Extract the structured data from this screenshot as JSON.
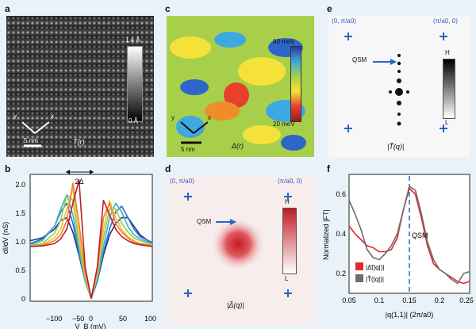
{
  "panels": {
    "a": {
      "label": "a",
      "colorbar_top": "1.4 Å",
      "colorbar_bottom": "0 Å",
      "axis_y": "y",
      "axis_x": "x",
      "scalebar": "5 nm",
      "map_label": "T(r)"
    },
    "b": {
      "label": "b",
      "annotation": "2Δ",
      "ylabel": "dI/dV (nS)",
      "xlabel": "V_B (mV)",
      "xticks": [
        "−100",
        "−50",
        "0",
        "50",
        "100"
      ],
      "yticks": [
        "0",
        "0.5",
        "1.0",
        "1.5",
        "2.0"
      ]
    },
    "c": {
      "label": "c",
      "colorbar_top": "60 meV",
      "colorbar_bottom": "20 meV",
      "axis_y": "y",
      "axis_x": "x",
      "scalebar": "5 nm",
      "map_label": "Δ(r)"
    },
    "d": {
      "label": "d",
      "corner_left": "(0, π/a0)",
      "corner_right": "(π/a0, 0)",
      "qsm": "QSM",
      "colorbar_top": "H",
      "colorbar_bottom": "L",
      "map_label": "|Δ̃(q)|"
    },
    "e": {
      "label": "e",
      "corner_left": "(0, π/a0)",
      "corner_right": "(π/a0, 0)",
      "qsm": "QSM",
      "colorbar_top": "H",
      "colorbar_bottom": "L",
      "map_label": "|T̃(q)|"
    },
    "f": {
      "label": "f",
      "ylabel": "Normalized |FT|",
      "xlabel": "|q(1,1)| (2π/a0)",
      "xticks": [
        "0.05",
        "0.1",
        "0.15",
        "0.2",
        "0.25"
      ],
      "yticks": [
        "0.2",
        "0.4",
        "0.6"
      ],
      "qsm": "QSM",
      "legend": [
        "|Δ̃(|q|)|",
        "|T̃(|q|)|"
      ]
    }
  },
  "colors": {
    "background": "#e9f2f9",
    "marker_blue": "#2a63c4",
    "series_red": "#e0282e",
    "series_gray": "#6d6d6d"
  },
  "chart_data": [
    {
      "type": "line",
      "panel": "b",
      "xlabel": "V_B (mV)",
      "ylabel": "dI/dV (nS)",
      "xlim": [
        -100,
        100
      ],
      "ylim": [
        0,
        2.2
      ],
      "series": [
        {
          "color": "#1f2f8e",
          "x": [
            -100,
            -80,
            -60,
            -50,
            -40,
            -30,
            -20,
            -10,
            0,
            10,
            20,
            30,
            40,
            50,
            60,
            70,
            80,
            100
          ],
          "y": [
            1.05,
            1.1,
            1.25,
            1.4,
            1.45,
            1.2,
            0.8,
            0.35,
            0.05,
            0.35,
            0.8,
            1.15,
            1.35,
            1.45,
            1.45,
            1.3,
            1.15,
            1.0
          ]
        },
        {
          "color": "#2f6fc7",
          "x": [
            -100,
            -80,
            -60,
            -50,
            -40,
            -30,
            -20,
            -10,
            0,
            10,
            20,
            30,
            40,
            50,
            60,
            70,
            80,
            100
          ],
          "y": [
            1.0,
            1.08,
            1.3,
            1.55,
            1.7,
            1.35,
            0.85,
            0.35,
            0.05,
            0.35,
            0.85,
            1.25,
            1.55,
            1.65,
            1.45,
            1.25,
            1.12,
            1.02
          ]
        },
        {
          "color": "#3fb2c8",
          "x": [
            -100,
            -80,
            -60,
            -50,
            -40,
            -30,
            -20,
            -10,
            0,
            10,
            20,
            30,
            40,
            50,
            60,
            70,
            80,
            100
          ],
          "y": [
            0.98,
            1.05,
            1.3,
            1.6,
            1.85,
            1.5,
            0.9,
            0.35,
            0.05,
            0.4,
            0.95,
            1.45,
            1.7,
            1.55,
            1.3,
            1.15,
            1.08,
            1.0
          ]
        },
        {
          "color": "#8fcf4c",
          "x": [
            -100,
            -80,
            -60,
            -50,
            -40,
            -30,
            -20,
            -10,
            0,
            10,
            20,
            30,
            40,
            50,
            60,
            70,
            80,
            100
          ],
          "y": [
            0.97,
            1.0,
            1.18,
            1.4,
            1.85,
            1.75,
            1.0,
            0.4,
            0.05,
            0.45,
            1.1,
            1.6,
            1.6,
            1.35,
            1.2,
            1.1,
            1.05,
            0.98
          ]
        },
        {
          "color": "#f2c23a",
          "x": [
            -100,
            -80,
            -60,
            -50,
            -40,
            -30,
            -20,
            -10,
            0,
            10,
            20,
            30,
            40,
            50,
            60,
            70,
            80,
            100
          ],
          "y": [
            0.95,
            0.98,
            1.1,
            1.25,
            1.6,
            1.95,
            1.15,
            0.45,
            0.05,
            0.5,
            1.25,
            1.75,
            1.45,
            1.25,
            1.12,
            1.05,
            1.0,
            0.97
          ]
        },
        {
          "color": "#ef7d2a",
          "x": [
            -100,
            -80,
            -60,
            -50,
            -40,
            -30,
            -20,
            -10,
            0,
            10,
            20,
            30,
            40,
            50,
            60,
            70,
            80,
            100
          ],
          "y": [
            0.95,
            0.97,
            1.05,
            1.15,
            1.4,
            2.05,
            1.35,
            0.5,
            0.05,
            0.55,
            1.45,
            1.7,
            1.35,
            1.2,
            1.1,
            1.02,
            1.0,
            0.96
          ]
        },
        {
          "color": "#b81f2a",
          "x": [
            -100,
            -80,
            -60,
            -50,
            -40,
            -30,
            -20,
            -10,
            0,
            10,
            20,
            30,
            40,
            50,
            60,
            70,
            80,
            100
          ],
          "y": [
            0.95,
            0.96,
            1.0,
            1.08,
            1.25,
            1.7,
            2.1,
            0.6,
            0.05,
            0.6,
            1.75,
            1.5,
            1.25,
            1.12,
            1.05,
            1.0,
            0.98,
            0.95
          ]
        }
      ]
    },
    {
      "type": "line",
      "panel": "f",
      "xlabel": "|q(1,1)| (2π/a0)",
      "ylabel": "Normalized |FT|",
      "xlim": [
        0.05,
        0.25
      ],
      "ylim": [
        0.1,
        0.7
      ],
      "series": [
        {
          "name": "|Δ̃(|q|)|",
          "color": "#e0282e",
          "x": [
            0.05,
            0.06,
            0.07,
            0.08,
            0.09,
            0.1,
            0.11,
            0.12,
            0.13,
            0.14,
            0.15,
            0.16,
            0.17,
            0.18,
            0.19,
            0.2,
            0.21,
            0.22,
            0.23,
            0.24,
            0.25
          ],
          "y": [
            0.44,
            0.4,
            0.37,
            0.34,
            0.33,
            0.31,
            0.31,
            0.32,
            0.38,
            0.52,
            0.63,
            0.6,
            0.48,
            0.34,
            0.25,
            0.22,
            0.2,
            0.18,
            0.16,
            0.15,
            0.16
          ]
        },
        {
          "name": "|T̃(|q|)|",
          "color": "#6d6d6d",
          "x": [
            0.05,
            0.06,
            0.07,
            0.08,
            0.09,
            0.1,
            0.11,
            0.12,
            0.13,
            0.14,
            0.15,
            0.16,
            0.17,
            0.18,
            0.19,
            0.2,
            0.21,
            0.22,
            0.23,
            0.24,
            0.25
          ],
          "y": [
            0.57,
            0.5,
            0.42,
            0.32,
            0.28,
            0.27,
            0.3,
            0.34,
            0.4,
            0.52,
            0.64,
            0.62,
            0.5,
            0.36,
            0.27,
            0.22,
            0.2,
            0.17,
            0.15,
            0.2,
            0.21
          ]
        }
      ],
      "annotation": {
        "x": 0.15,
        "label": "QSM"
      }
    }
  ]
}
